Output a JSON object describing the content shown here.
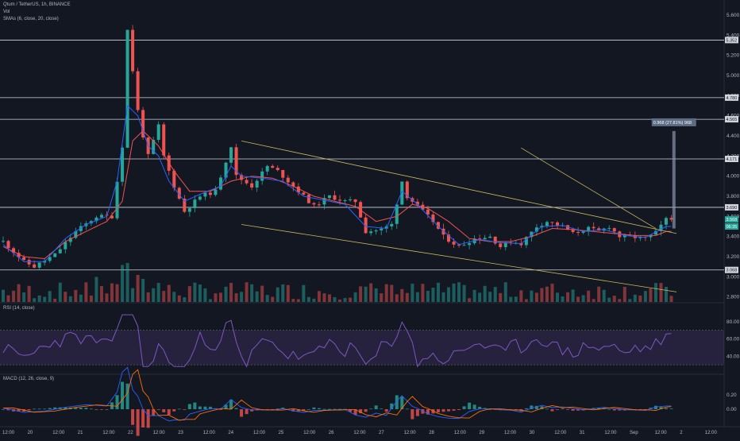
{
  "header": {
    "title": "Qtum / TetherUS, 1h, BINANCE",
    "vol_label": "Vol",
    "smas_label": "SMAs (6, close, 20, close)"
  },
  "rsi_label": "RSI (14, close)",
  "macd_label": "MACD (12, 26, close, 9)",
  "measure_label": "0.968 (27.81%) 968",
  "colors": {
    "background": "#131722",
    "up": "#26a69a",
    "down": "#ef5350",
    "sma_fast": "#2962ff",
    "sma_slow": "#ef5350",
    "trendline": "#c9b95a",
    "rsi": "#7e57c2",
    "macd_signal": "#ff6d00"
  },
  "chart_data": {
    "type": "candlestick",
    "symbol": "QTUM/USDT",
    "interval": "1h",
    "exchange": "BINANCE",
    "x_ticks": [
      "12:00",
      "20",
      "12:00",
      "21",
      "12:00",
      "22",
      "12:00",
      "23",
      "12:00",
      "24",
      "12:00",
      "25",
      "12:00",
      "26",
      "12:00",
      "27",
      "12:00",
      "28",
      "12:00",
      "29",
      "12:00",
      "30",
      "12:00",
      "31",
      "12:00",
      "Sep",
      "12:00",
      "2",
      "12:00"
    ],
    "y_ticks": [
      5.6,
      5.4,
      5.2,
      5.0,
      4.8,
      4.6,
      4.4,
      4.2,
      4.0,
      3.8,
      3.6,
      3.4,
      3.2,
      3.0,
      2.8
    ],
    "ylim": [
      2.75,
      5.75
    ],
    "horizontal_levels": [
      5.352,
      4.78,
      4.565,
      4.171,
      3.69,
      3.068
    ],
    "level_labels": [
      "5.352",
      "4.780",
      "4.565",
      "4.171",
      "3.690",
      "3.068"
    ],
    "current_price_labels": [
      "3.568",
      "06:35"
    ],
    "measure": {
      "from": 3.48,
      "to": 4.448,
      "label": "0.968 (27.81%) 968"
    },
    "close_path": [
      [
        0,
        3.35
      ],
      [
        4,
        3.15
      ],
      [
        6,
        3.1
      ],
      [
        10,
        3.22
      ],
      [
        14,
        3.45
      ],
      [
        18,
        3.6
      ],
      [
        21,
        3.6
      ],
      [
        23,
        4.3
      ],
      [
        24,
        5.45
      ],
      [
        26,
        4.65
      ],
      [
        27,
        4.4
      ],
      [
        28,
        4.2
      ],
      [
        30,
        4.5
      ],
      [
        31,
        4.2
      ],
      [
        33,
        3.9
      ],
      [
        35,
        3.65
      ],
      [
        38,
        3.8
      ],
      [
        41,
        3.85
      ],
      [
        44,
        4.3
      ],
      [
        45,
        4.0
      ],
      [
        48,
        3.9
      ],
      [
        51,
        4.1
      ],
      [
        53,
        4.05
      ],
      [
        55,
        3.95
      ],
      [
        57,
        3.85
      ],
      [
        60,
        3.7
      ],
      [
        63,
        3.8
      ],
      [
        66,
        3.75
      ],
      [
        68,
        3.75
      ],
      [
        70,
        3.45
      ],
      [
        73,
        3.47
      ],
      [
        75,
        3.52
      ],
      [
        77,
        3.95
      ],
      [
        78,
        3.8
      ],
      [
        81,
        3.65
      ],
      [
        83,
        3.55
      ],
      [
        85,
        3.4
      ],
      [
        88,
        3.3
      ],
      [
        91,
        3.38
      ],
      [
        94,
        3.4
      ],
      [
        96,
        3.3
      ],
      [
        98,
        3.35
      ],
      [
        100,
        3.33
      ],
      [
        103,
        3.5
      ],
      [
        105,
        3.55
      ],
      [
        108,
        3.5
      ],
      [
        110,
        3.43
      ],
      [
        113,
        3.48
      ],
      [
        115,
        3.45
      ],
      [
        117,
        3.5
      ],
      [
        119,
        3.4
      ],
      [
        121,
        3.4
      ],
      [
        124,
        3.38
      ],
      [
        126,
        3.44
      ],
      [
        128,
        3.57
      ]
    ],
    "sma_slow_path": [
      [
        0,
        3.3
      ],
      [
        4,
        3.2
      ],
      [
        8,
        3.18
      ],
      [
        12,
        3.35
      ],
      [
        16,
        3.45
      ],
      [
        20,
        3.55
      ],
      [
        23,
        3.75
      ],
      [
        25,
        4.35
      ],
      [
        27,
        4.45
      ],
      [
        30,
        4.3
      ],
      [
        33,
        4.05
      ],
      [
        36,
        3.85
      ],
      [
        40,
        3.85
      ],
      [
        44,
        3.95
      ],
      [
        48,
        4.0
      ],
      [
        52,
        3.98
      ],
      [
        56,
        3.9
      ],
      [
        60,
        3.8
      ],
      [
        64,
        3.75
      ],
      [
        68,
        3.7
      ],
      [
        72,
        3.55
      ],
      [
        76,
        3.6
      ],
      [
        79,
        3.72
      ],
      [
        82,
        3.68
      ],
      [
        86,
        3.55
      ],
      [
        90,
        3.38
      ],
      [
        94,
        3.35
      ],
      [
        98,
        3.35
      ],
      [
        102,
        3.4
      ],
      [
        106,
        3.48
      ],
      [
        110,
        3.47
      ],
      [
        114,
        3.45
      ],
      [
        118,
        3.43
      ],
      [
        122,
        3.41
      ],
      [
        126,
        3.41
      ],
      [
        128,
        3.45
      ]
    ],
    "sma_fast_path": [
      [
        0,
        3.32
      ],
      [
        4,
        3.15
      ],
      [
        8,
        3.15
      ],
      [
        12,
        3.38
      ],
      [
        16,
        3.52
      ],
      [
        20,
        3.6
      ],
      [
        22,
        3.95
      ],
      [
        24,
        4.7
      ],
      [
        26,
        4.6
      ],
      [
        28,
        4.3
      ],
      [
        30,
        4.2
      ],
      [
        32,
        3.95
      ],
      [
        35,
        3.75
      ],
      [
        38,
        3.82
      ],
      [
        42,
        3.9
      ],
      [
        44,
        4.1
      ],
      [
        46,
        4.0
      ],
      [
        50,
        3.98
      ],
      [
        54,
        3.95
      ],
      [
        58,
        3.8
      ],
      [
        62,
        3.76
      ],
      [
        66,
        3.72
      ],
      [
        70,
        3.5
      ],
      [
        74,
        3.48
      ],
      [
        77,
        3.85
      ],
      [
        80,
        3.72
      ],
      [
        84,
        3.5
      ],
      [
        88,
        3.32
      ],
      [
        92,
        3.37
      ],
      [
        96,
        3.34
      ],
      [
        100,
        3.33
      ],
      [
        104,
        3.5
      ],
      [
        108,
        3.51
      ],
      [
        112,
        3.45
      ],
      [
        116,
        3.47
      ],
      [
        120,
        3.41
      ],
      [
        124,
        3.39
      ],
      [
        128,
        3.5
      ]
    ],
    "trendlines": [
      {
        "from": [
          46,
          4.35
        ],
        "to": [
          130,
          3.43
        ]
      },
      {
        "from": [
          46,
          3.52
        ],
        "to": [
          130,
          2.85
        ]
      },
      {
        "from": [
          100,
          4.28
        ],
        "to": [
          126,
          3.48
        ]
      }
    ],
    "volume_spikes": [
      [
        18,
        0.55
      ],
      [
        23,
        0.85
      ],
      [
        24,
        0.9
      ],
      [
        26,
        0.6
      ],
      [
        27,
        0.5
      ],
      [
        30,
        0.4
      ],
      [
        75,
        0.35
      ],
      [
        128,
        0.3
      ]
    ],
    "rsi": {
      "ylim": [
        20,
        100
      ],
      "band": [
        30,
        70
      ],
      "ticks": [
        80.0,
        60.0,
        40.0
      ],
      "tick_labels": [
        "80.00",
        "60.00",
        "40.00"
      ]
    },
    "macd": {
      "ticks": [
        0.2,
        0.0
      ],
      "tick_labels": [
        "0.20",
        "0.00"
      ]
    }
  }
}
